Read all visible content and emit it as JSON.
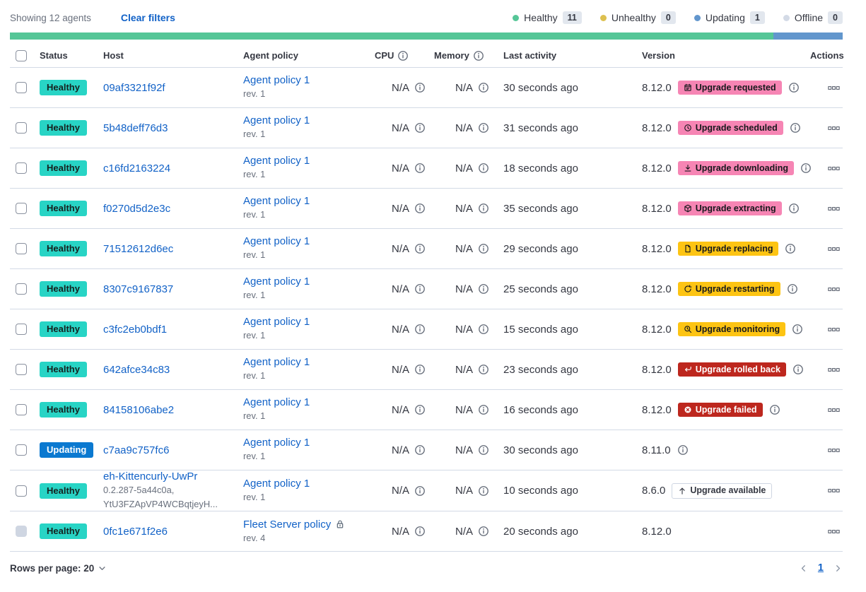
{
  "toolbar": {
    "showing": "Showing 12 agents",
    "clear_filters": "Clear filters"
  },
  "legend": {
    "items": [
      {
        "label": "Healthy",
        "count": "11",
        "color": "#55c697"
      },
      {
        "label": "Unhealthy",
        "count": "0",
        "color": "#ddc04f"
      },
      {
        "label": "Updating",
        "count": "1",
        "color": "#6296cd"
      },
      {
        "label": "Offline",
        "count": "0",
        "color": "#d3dae6"
      }
    ]
  },
  "health_bar": {
    "segments": [
      {
        "status": "healthy",
        "color": "#55c697",
        "fraction": 0.9167
      },
      {
        "status": "updating",
        "color": "#6296cd",
        "fraction": 0.0833
      }
    ]
  },
  "table": {
    "headers": {
      "status": "Status",
      "host": "Host",
      "policy": "Agent policy",
      "cpu": "CPU",
      "memory": "Memory",
      "last_activity": "Last activity",
      "version": "Version",
      "actions": "Actions"
    },
    "rows": [
      {
        "status": "Healthy",
        "host": "09af3321f92f",
        "host_sub": [],
        "policy": "Agent policy 1",
        "policy_rev": "rev. 1",
        "policy_locked": false,
        "cpu": "N/A",
        "memory": "N/A",
        "last_activity": "30 seconds ago",
        "version": "8.12.0",
        "upgrade": {
          "label": "Upgrade requested",
          "style": "accent",
          "icon": "calendar"
        },
        "version_info": true,
        "checkbox_disabled": false
      },
      {
        "status": "Healthy",
        "host": "5b48deff76d3",
        "host_sub": [],
        "policy": "Agent policy 1",
        "policy_rev": "rev. 1",
        "policy_locked": false,
        "cpu": "N/A",
        "memory": "N/A",
        "last_activity": "31 seconds ago",
        "version": "8.12.0",
        "upgrade": {
          "label": "Upgrade scheduled",
          "style": "accent",
          "icon": "clock"
        },
        "version_info": true,
        "checkbox_disabled": false
      },
      {
        "status": "Healthy",
        "host": "c16fd2163224",
        "host_sub": [],
        "policy": "Agent policy 1",
        "policy_rev": "rev. 1",
        "policy_locked": false,
        "cpu": "N/A",
        "memory": "N/A",
        "last_activity": "18 seconds ago",
        "version": "8.12.0",
        "upgrade": {
          "label": "Upgrade downloading",
          "style": "accent",
          "icon": "download"
        },
        "version_info": true,
        "checkbox_disabled": false
      },
      {
        "status": "Healthy",
        "host": "f0270d5d2e3c",
        "host_sub": [],
        "policy": "Agent policy 1",
        "policy_rev": "rev. 1",
        "policy_locked": false,
        "cpu": "N/A",
        "memory": "N/A",
        "last_activity": "35 seconds ago",
        "version": "8.12.0",
        "upgrade": {
          "label": "Upgrade extracting",
          "style": "accent",
          "icon": "package"
        },
        "version_info": true,
        "checkbox_disabled": false
      },
      {
        "status": "Healthy",
        "host": "71512612d6ec",
        "host_sub": [],
        "policy": "Agent policy 1",
        "policy_rev": "rev. 1",
        "policy_locked": false,
        "cpu": "N/A",
        "memory": "N/A",
        "last_activity": "29 seconds ago",
        "version": "8.12.0",
        "upgrade": {
          "label": "Upgrade replacing",
          "style": "warning",
          "icon": "document"
        },
        "version_info": true,
        "checkbox_disabled": false
      },
      {
        "status": "Healthy",
        "host": "8307c9167837",
        "host_sub": [],
        "policy": "Agent policy 1",
        "policy_rev": "rev. 1",
        "policy_locked": false,
        "cpu": "N/A",
        "memory": "N/A",
        "last_activity": "25 seconds ago",
        "version": "8.12.0",
        "upgrade": {
          "label": "Upgrade restarting",
          "style": "warning",
          "icon": "refresh"
        },
        "version_info": true,
        "checkbox_disabled": false
      },
      {
        "status": "Healthy",
        "host": "c3fc2eb0bdf1",
        "host_sub": [],
        "policy": "Agent policy 1",
        "policy_rev": "rev. 1",
        "policy_locked": false,
        "cpu": "N/A",
        "memory": "N/A",
        "last_activity": "15 seconds ago",
        "version": "8.12.0",
        "upgrade": {
          "label": "Upgrade monitoring",
          "style": "warning",
          "icon": "inspect"
        },
        "version_info": true,
        "checkbox_disabled": false
      },
      {
        "status": "Healthy",
        "host": "642afce34c83",
        "host_sub": [],
        "policy": "Agent policy 1",
        "policy_rev": "rev. 1",
        "policy_locked": false,
        "cpu": "N/A",
        "memory": "N/A",
        "last_activity": "23 seconds ago",
        "version": "8.12.0",
        "upgrade": {
          "label": "Upgrade rolled back",
          "style": "danger",
          "icon": "return"
        },
        "version_info": true,
        "checkbox_disabled": false
      },
      {
        "status": "Healthy",
        "host": "84158106abe2",
        "host_sub": [],
        "policy": "Agent policy 1",
        "policy_rev": "rev. 1",
        "policy_locked": false,
        "cpu": "N/A",
        "memory": "N/A",
        "last_activity": "16 seconds ago",
        "version": "8.12.0",
        "upgrade": {
          "label": "Upgrade failed",
          "style": "danger",
          "icon": "error"
        },
        "version_info": true,
        "checkbox_disabled": false
      },
      {
        "status": "Updating",
        "host": "c7aa9c757fc6",
        "host_sub": [],
        "policy": "Agent policy 1",
        "policy_rev": "rev. 1",
        "policy_locked": false,
        "cpu": "N/A",
        "memory": "N/A",
        "last_activity": "30 seconds ago",
        "version": "8.11.0",
        "upgrade": null,
        "version_info": true,
        "checkbox_disabled": false
      },
      {
        "status": "Healthy",
        "host": "eh-Kittencurly-UwPr",
        "host_sub": [
          "0.2.287-5a44c0a,",
          "YtU3FZApVP4WCBqtjeyH..."
        ],
        "policy": "Agent policy 1",
        "policy_rev": "rev. 1",
        "policy_locked": false,
        "cpu": "N/A",
        "memory": "N/A",
        "last_activity": "10 seconds ago",
        "version": "8.6.0",
        "upgrade": {
          "label": "Upgrade available",
          "style": "hollow",
          "icon": "arrow-up"
        },
        "version_info": false,
        "checkbox_disabled": false
      },
      {
        "status": "Healthy",
        "host": "0fc1e671f2e6",
        "host_sub": [],
        "policy": "Fleet Server policy",
        "policy_rev": "rev. 4",
        "policy_locked": true,
        "cpu": "N/A",
        "memory": "N/A",
        "last_activity": "20 seconds ago",
        "version": "8.12.0",
        "upgrade": null,
        "version_info": false,
        "checkbox_disabled": true
      }
    ]
  },
  "footer": {
    "rows_per_page": "Rows per page: 20",
    "page": "1"
  },
  "colors": {
    "healthy_badge": "#28d4c5",
    "updating_badge": "#0b79d0",
    "upgrade_accent": "#f685b4",
    "upgrade_warning": "#fdc413",
    "upgrade_danger": "#bd271e",
    "link": "#1262c7",
    "bar_healthy": "#55c697",
    "bar_updating": "#6296cd"
  }
}
